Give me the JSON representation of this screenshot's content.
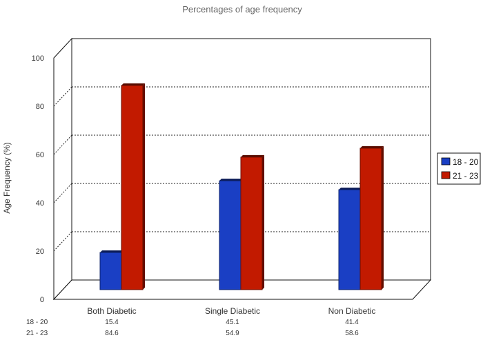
{
  "chart_data": {
    "type": "bar",
    "title": "Percentages of age frequency",
    "xlabel": "",
    "ylabel": "Age Frequency (%)",
    "ylim": [
      0,
      100
    ],
    "yticks": [
      "0",
      "20",
      "40",
      "60",
      "80",
      "100"
    ],
    "categories": [
      "Both Diabetic",
      "Single Diabetic",
      "Non Diabetic"
    ],
    "series": [
      {
        "name": "18 - 20",
        "values": [
          15.4,
          45.1,
          41.4
        ],
        "value_labels": [
          "15.4",
          "45.1",
          "41.4"
        ],
        "color": "#1a3fc4"
      },
      {
        "name": "21 - 23",
        "values": [
          84.6,
          54.9,
          58.6
        ],
        "value_labels": [
          "84.6",
          "54.9",
          "58.6"
        ],
        "color": "#c21a00"
      }
    ],
    "grid": true,
    "legend": "right",
    "data_table": true
  }
}
